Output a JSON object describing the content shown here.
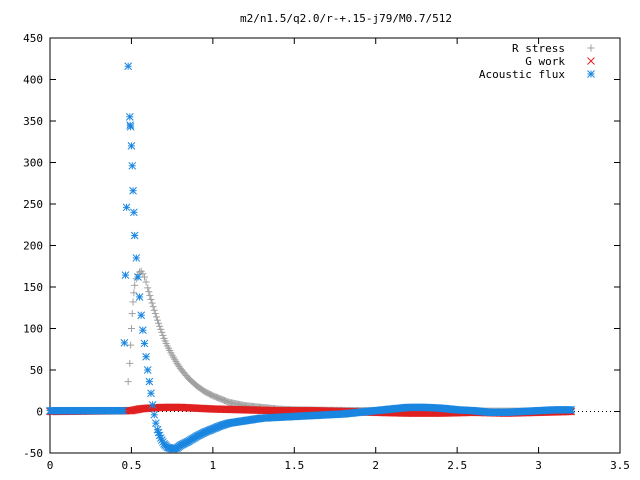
{
  "chart_data": {
    "type": "scatter",
    "title": "m2/n1.5/q2.0/r-+.15-j79/M0.7/512",
    "xlabel": "",
    "ylabel": "",
    "xlim": [
      0,
      3.5
    ],
    "ylim": [
      -50,
      450
    ],
    "grid": false,
    "legend_position": "top-right",
    "x_ticks": [
      "0",
      "0.5",
      "1",
      "1.5",
      "2",
      "2.5",
      "3",
      "3.5"
    ],
    "x_tick_values": [
      0,
      0.5,
      1,
      1.5,
      2,
      2.5,
      3,
      3.5
    ],
    "y_ticks": [
      "-50",
      "0",
      "50",
      "100",
      "150",
      "200",
      "250",
      "300",
      "350",
      "400",
      "450"
    ],
    "y_tick_values": [
      -50,
      0,
      50,
      100,
      150,
      200,
      250,
      300,
      350,
      400,
      450
    ],
    "series": [
      {
        "name": "R stress",
        "marker": "plus",
        "color": "#a0a0a0",
        "points": [
          [
            0.48,
            36
          ],
          [
            0.49,
            58
          ],
          [
            0.495,
            80
          ],
          [
            0.5,
            100
          ],
          [
            0.505,
            118
          ],
          [
            0.51,
            132
          ],
          [
            0.515,
            143
          ],
          [
            0.52,
            152
          ],
          [
            0.53,
            160
          ],
          [
            0.54,
            165
          ],
          [
            0.55,
            168
          ],
          [
            0.56,
            169
          ],
          [
            0.57,
            166
          ],
          [
            0.58,
            162
          ],
          [
            0.59,
            156
          ],
          [
            0.6,
            149
          ],
          [
            0.62,
            135
          ],
          [
            0.64,
            122
          ],
          [
            0.66,
            110
          ],
          [
            0.68,
            99
          ],
          [
            0.7,
            88
          ],
          [
            0.72,
            79
          ],
          [
            0.75,
            68
          ],
          [
            0.78,
            58
          ],
          [
            0.8,
            52
          ],
          [
            0.85,
            40
          ],
          [
            0.9,
            31
          ],
          [
            0.95,
            24
          ],
          [
            1.0,
            19
          ],
          [
            1.05,
            15
          ],
          [
            1.1,
            11
          ],
          [
            1.15,
            9
          ],
          [
            1.2,
            7
          ],
          [
            1.3,
            5
          ],
          [
            1.4,
            3
          ],
          [
            1.5,
            2
          ],
          [
            1.7,
            1.5
          ],
          [
            2.0,
            1
          ],
          [
            2.5,
            0.5
          ],
          [
            3.0,
            0.5
          ],
          [
            3.2,
            0.5
          ]
        ]
      },
      {
        "name": "G work",
        "marker": "cross",
        "color": "#e02020",
        "points": [
          [
            0.0,
            0
          ],
          [
            0.5,
            1
          ],
          [
            0.55,
            3
          ],
          [
            0.6,
            4
          ],
          [
            0.7,
            5
          ],
          [
            0.8,
            5
          ],
          [
            0.9,
            4
          ],
          [
            1.0,
            3
          ],
          [
            1.2,
            2
          ],
          [
            1.4,
            1
          ],
          [
            1.6,
            1
          ],
          [
            1.8,
            0
          ],
          [
            2.0,
            -1
          ],
          [
            2.2,
            -2
          ],
          [
            2.4,
            -2
          ],
          [
            2.6,
            -1
          ],
          [
            2.8,
            -2
          ],
          [
            3.0,
            -1
          ],
          [
            3.2,
            0
          ]
        ]
      },
      {
        "name": "Acoustic flux",
        "marker": "star",
        "color": "#1a86e0",
        "points": [
          [
            0.0,
            1
          ],
          [
            0.1,
            1
          ],
          [
            0.2,
            1
          ],
          [
            0.3,
            1
          ],
          [
            0.4,
            1
          ],
          [
            0.45,
            1
          ],
          [
            0.47,
            246
          ],
          [
            0.48,
            416
          ],
          [
            0.49,
            355
          ],
          [
            0.492,
            345
          ],
          [
            0.495,
            343
          ],
          [
            0.5,
            320
          ],
          [
            0.505,
            296
          ],
          [
            0.51,
            266
          ],
          [
            0.515,
            240
          ],
          [
            0.52,
            212
          ],
          [
            0.53,
            185
          ],
          [
            0.54,
            162
          ],
          [
            0.55,
            138
          ],
          [
            0.56,
            116
          ],
          [
            0.57,
            98
          ],
          [
            0.58,
            82
          ],
          [
            0.59,
            66
          ],
          [
            0.6,
            50
          ],
          [
            0.61,
            36
          ],
          [
            0.62,
            22
          ],
          [
            0.63,
            8
          ],
          [
            0.64,
            -4
          ],
          [
            0.65,
            -14
          ],
          [
            0.66,
            -22
          ],
          [
            0.68,
            -32
          ],
          [
            0.7,
            -39
          ],
          [
            0.72,
            -43
          ],
          [
            0.75,
            -45
          ],
          [
            0.78,
            -44
          ],
          [
            0.8,
            -41
          ],
          [
            0.85,
            -36
          ],
          [
            0.9,
            -30
          ],
          [
            0.95,
            -25
          ],
          [
            1.0,
            -21
          ],
          [
            1.05,
            -17
          ],
          [
            1.1,
            -14
          ],
          [
            1.2,
            -11
          ],
          [
            1.3,
            -8
          ],
          [
            1.4,
            -7
          ],
          [
            1.5,
            -6
          ],
          [
            1.6,
            -5
          ],
          [
            1.7,
            -4
          ],
          [
            1.8,
            -3
          ],
          [
            1.9,
            -1
          ],
          [
            2.0,
            1
          ],
          [
            2.1,
            3
          ],
          [
            2.2,
            5
          ],
          [
            2.3,
            5
          ],
          [
            2.4,
            4
          ],
          [
            2.5,
            2
          ],
          [
            2.6,
            1
          ],
          [
            2.7,
            -1
          ],
          [
            2.8,
            -1
          ],
          [
            2.9,
            0
          ],
          [
            3.0,
            1
          ],
          [
            3.1,
            2
          ],
          [
            3.2,
            2
          ]
        ]
      }
    ]
  }
}
